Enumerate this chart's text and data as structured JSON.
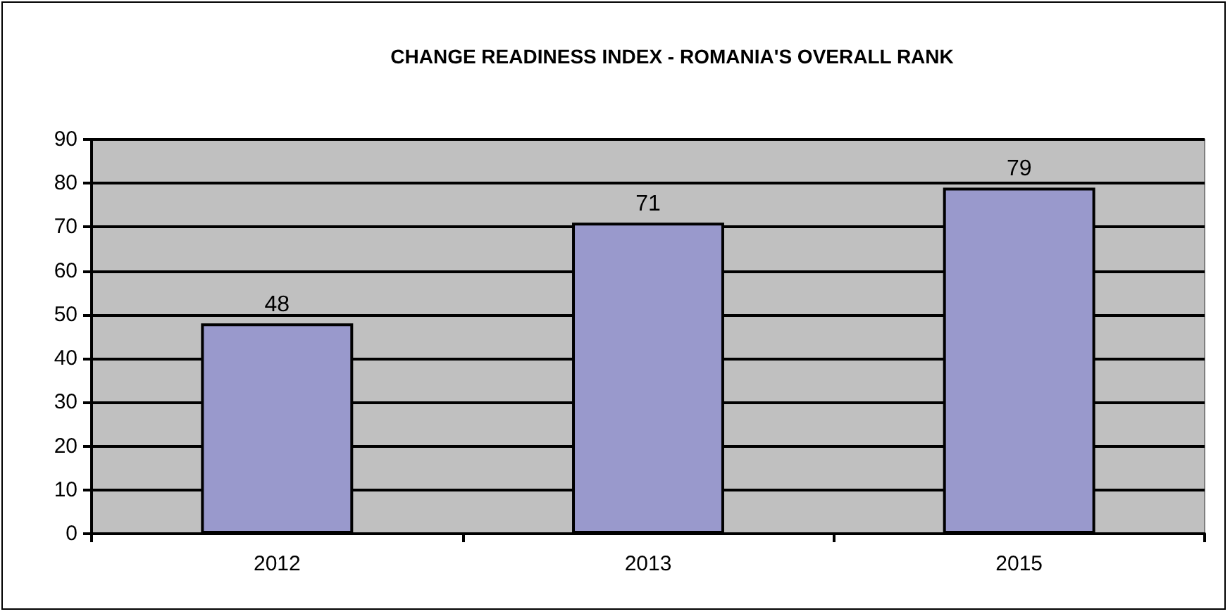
{
  "chart_data": {
    "type": "bar",
    "title": "CHANGE READINESS INDEX - ROMANIA'S OVERALL RANK",
    "categories": [
      "2012",
      "2013",
      "2015"
    ],
    "values": [
      48,
      71,
      79
    ],
    "color": "#9999cc",
    "ylim": [
      0,
      90
    ],
    "yticks": [
      0,
      10,
      20,
      30,
      40,
      50,
      60,
      70,
      80,
      90
    ],
    "grid": "y",
    "data_labels": true
  }
}
